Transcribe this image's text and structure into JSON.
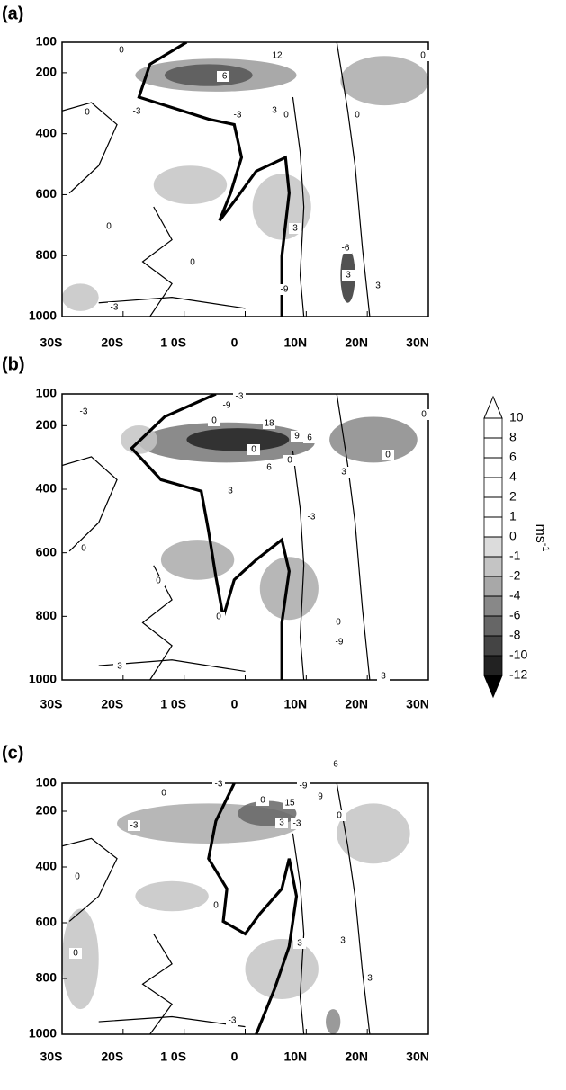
{
  "chart_data": [
    {
      "type": "contour",
      "label": "(a)",
      "xlim": [
        -30,
        30
      ],
      "xticks": [
        {
          "value": -30,
          "label": "30S"
        },
        {
          "value": -20,
          "label": "20S"
        },
        {
          "value": -10,
          "label": "1 0S"
        },
        0,
        {
          "value": 10,
          "label": "10N"
        },
        {
          "value": 20,
          "label": "20N"
        },
        {
          "value": 30,
          "label": "30N"
        }
      ],
      "ylim": [
        100,
        1000
      ],
      "yticks": [
        100,
        200,
        400,
        600,
        800,
        1000
      ],
      "contour_labels": [
        0,
        -6,
        12,
        0,
        -3,
        0,
        -3,
        3,
        0,
        0,
        0,
        3,
        0,
        -6,
        3,
        -9,
        3,
        -3
      ]
    },
    {
      "type": "contour",
      "label": "(b)",
      "xlim": [
        -30,
        30
      ],
      "xticks": [
        {
          "value": -30,
          "label": "30S"
        },
        {
          "value": -20,
          "label": "20S"
        },
        {
          "value": -10,
          "label": "1 0S"
        },
        0,
        {
          "value": 10,
          "label": "10N"
        },
        {
          "value": 20,
          "label": "20N"
        },
        {
          "value": 30,
          "label": "30N"
        }
      ],
      "ylim": [
        100,
        1000
      ],
      "yticks": [
        100,
        200,
        400,
        600,
        800,
        1000
      ],
      "contour_labels": [
        -3,
        -9,
        0,
        0,
        18,
        -3,
        9,
        6,
        0,
        6,
        0,
        0,
        3,
        3,
        -3,
        0,
        0,
        0,
        0,
        -9,
        3,
        3
      ]
    },
    {
      "type": "contour",
      "label": "(c)",
      "xlim": [
        -30,
        30
      ],
      "xticks": [
        {
          "value": -30,
          "label": "30S"
        },
        {
          "value": -20,
          "label": "20S"
        },
        {
          "value": -10,
          "label": "1 0S"
        },
        0,
        {
          "value": 10,
          "label": "10N"
        },
        {
          "value": 20,
          "label": "20N"
        },
        {
          "value": 30,
          "label": "30N"
        }
      ],
      "ylim": [
        100,
        1000
      ],
      "yticks": [
        100,
        200,
        400,
        600,
        800,
        1000
      ],
      "contour_labels": [
        6,
        -3,
        -9,
        0,
        0,
        15,
        9,
        0,
        -3,
        3,
        -3,
        0,
        0,
        0,
        3,
        3,
        -3,
        3
      ]
    }
  ],
  "colorbar": {
    "levels": [
      10,
      8,
      6,
      4,
      2,
      1,
      0,
      -1,
      -2,
      -4,
      -6,
      -8,
      -10,
      -12
    ],
    "colors": [
      "#ffffff",
      "#ffffff",
      "#ffffff",
      "#ffffff",
      "#ffffff",
      "#ffffff",
      "#dcdcdc",
      "#c4c4c4",
      "#a8a8a8",
      "#888888",
      "#666666",
      "#444444",
      "#222222"
    ],
    "extend_colors": [
      "#ffffff",
      "#000000"
    ],
    "unit": "ms",
    "unit_exponent": "-1"
  }
}
